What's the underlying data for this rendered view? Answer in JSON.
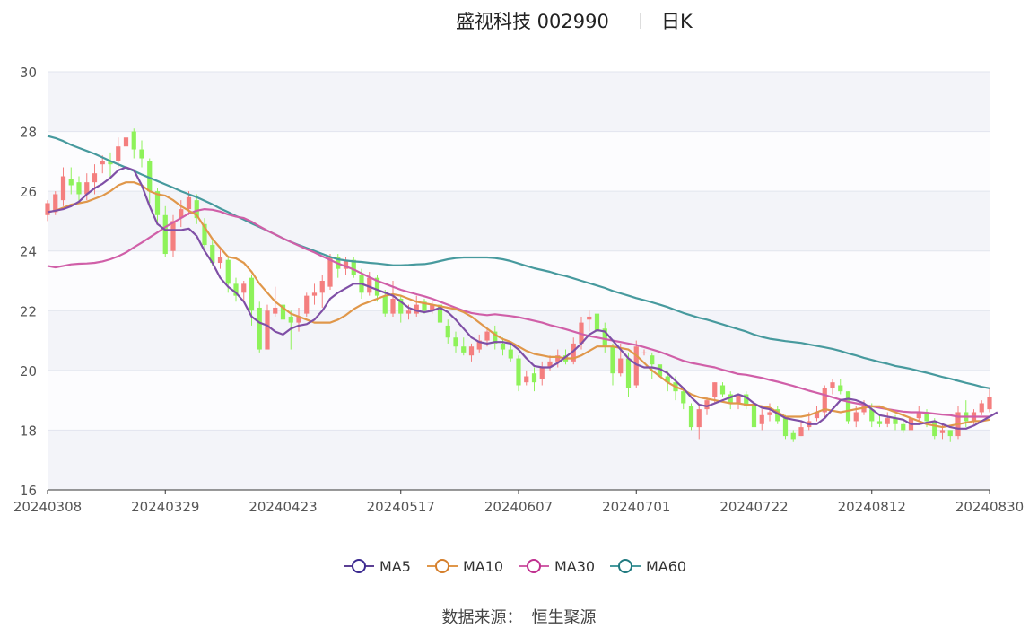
{
  "header": {
    "title": "盛视科技 002990",
    "period": "日K"
  },
  "source": {
    "label": "数据来源：",
    "value": "恒生聚源"
  },
  "colors": {
    "up": "#f47f7f",
    "down": "#8ef25a",
    "MA5": "#7f4fa6",
    "MA10": "#e0974a",
    "MA30": "#d05fa8",
    "MA60": "#479a9e",
    "band": "#f3f4f9",
    "grid": "#e2e5ee"
  },
  "chart_data": {
    "type": "candlestick",
    "title": "盛视科技 002990 日K",
    "ylim": [
      16,
      30
    ],
    "y_ticks": [
      "16",
      "18",
      "20",
      "22",
      "24",
      "26",
      "28",
      "30"
    ],
    "x_ticks": [
      "20240308",
      "20240329",
      "20240423",
      "20240517",
      "20240607",
      "20240701",
      "20240722",
      "20240812",
      "20240830"
    ],
    "legend": [
      "MA5",
      "MA10",
      "MA30",
      "MA60"
    ],
    "legend_position": "bottom",
    "n_days": 121,
    "candles": [
      [
        25.2,
        25.6,
        25.0,
        25.7
      ],
      [
        25.3,
        25.9,
        25.2,
        26.0
      ],
      [
        25.7,
        26.5,
        25.5,
        26.8
      ],
      [
        26.4,
        26.2,
        25.9,
        26.8
      ],
      [
        26.3,
        25.9,
        25.6,
        26.5
      ],
      [
        25.9,
        26.3,
        25.7,
        26.6
      ],
      [
        26.3,
        26.6,
        25.9,
        26.9
      ],
      [
        26.9,
        27.0,
        26.6,
        27.2
      ],
      [
        27.0,
        26.9,
        26.4,
        27.3
      ],
      [
        27.0,
        27.5,
        26.8,
        27.8
      ],
      [
        27.5,
        27.8,
        27.1,
        28.0
      ],
      [
        28.0,
        27.4,
        27.1,
        28.1
      ],
      [
        27.4,
        27.1,
        26.8,
        27.7
      ],
      [
        27.0,
        26.0,
        25.6,
        27.1
      ],
      [
        26.0,
        25.2,
        24.9,
        26.1
      ],
      [
        25.2,
        23.9,
        23.8,
        25.5
      ],
      [
        24.0,
        25.0,
        23.8,
        25.2
      ],
      [
        25.1,
        25.4,
        24.8,
        25.7
      ],
      [
        25.4,
        25.8,
        25.2,
        26.0
      ],
      [
        25.7,
        25.1,
        24.9,
        25.9
      ],
      [
        24.9,
        24.2,
        24.1,
        25.1
      ],
      [
        24.2,
        23.6,
        23.5,
        24.4
      ],
      [
        23.6,
        23.8,
        23.4,
        24.1
      ],
      [
        23.7,
        22.9,
        22.6,
        23.8
      ],
      [
        22.9,
        22.5,
        22.3,
        23.1
      ],
      [
        22.6,
        22.9,
        22.3,
        23.0
      ],
      [
        23.1,
        22.0,
        21.5,
        23.2
      ],
      [
        22.1,
        20.7,
        20.6,
        22.3
      ],
      [
        20.7,
        22.0,
        20.7,
        22.2
      ],
      [
        21.9,
        22.1,
        21.8,
        22.8
      ],
      [
        22.2,
        21.7,
        21.2,
        22.4
      ],
      [
        21.8,
        21.6,
        20.7,
        22.0
      ],
      [
        21.6,
        21.8,
        21.3,
        22.1
      ],
      [
        21.9,
        22.5,
        21.8,
        22.6
      ],
      [
        22.5,
        22.6,
        22.2,
        22.9
      ],
      [
        22.6,
        23.0,
        22.1,
        23.2
      ],
      [
        22.8,
        23.8,
        22.7,
        23.9
      ],
      [
        23.8,
        23.4,
        23.1,
        23.9
      ],
      [
        23.4,
        23.7,
        23.2,
        23.8
      ],
      [
        23.7,
        23.2,
        23.1,
        23.8
      ],
      [
        23.2,
        22.6,
        22.4,
        23.4
      ],
      [
        22.6,
        23.1,
        22.5,
        23.3
      ],
      [
        23.1,
        22.5,
        22.3,
        23.2
      ],
      [
        22.5,
        21.9,
        21.8,
        22.7
      ],
      [
        21.9,
        22.4,
        21.8,
        23.0
      ],
      [
        22.4,
        21.9,
        21.6,
        22.5
      ],
      [
        21.9,
        22.0,
        21.7,
        22.2
      ],
      [
        21.9,
        22.2,
        21.8,
        22.5
      ],
      [
        22.3,
        22.0,
        21.9,
        22.4
      ],
      [
        22.0,
        22.2,
        21.9,
        22.3
      ],
      [
        22.2,
        21.6,
        21.4,
        22.3
      ],
      [
        21.5,
        21.1,
        20.9,
        21.7
      ],
      [
        21.1,
        20.8,
        20.6,
        21.3
      ],
      [
        20.8,
        20.6,
        20.5,
        21.1
      ],
      [
        20.5,
        20.8,
        20.3,
        20.9
      ],
      [
        20.7,
        21.0,
        20.6,
        21.2
      ],
      [
        21.0,
        21.3,
        20.8,
        21.4
      ],
      [
        21.3,
        20.9,
        20.7,
        21.5
      ],
      [
        20.9,
        20.7,
        20.5,
        21.1
      ],
      [
        20.7,
        20.4,
        20.3,
        20.9
      ],
      [
        20.4,
        19.5,
        19.3,
        20.5
      ],
      [
        19.6,
        19.8,
        19.5,
        20.0
      ],
      [
        19.9,
        19.6,
        19.3,
        20.1
      ],
      [
        19.7,
        20.1,
        19.5,
        20.3
      ],
      [
        20.1,
        20.3,
        20.0,
        20.5
      ],
      [
        20.3,
        20.5,
        20.1,
        20.7
      ],
      [
        20.5,
        20.3,
        20.2,
        20.7
      ],
      [
        20.3,
        20.9,
        20.2,
        21.1
      ],
      [
        20.9,
        21.6,
        20.7,
        21.8
      ],
      [
        21.7,
        21.8,
        21.3,
        22.0
      ],
      [
        21.9,
        21.3,
        21.0,
        22.8
      ],
      [
        21.4,
        20.8,
        20.6,
        21.6
      ],
      [
        20.8,
        19.9,
        19.5,
        20.9
      ],
      [
        19.9,
        20.4,
        19.8,
        20.9
      ],
      [
        20.4,
        19.4,
        19.1,
        20.6
      ],
      [
        19.5,
        20.8,
        19.4,
        21.0
      ],
      [
        20.6,
        20.6,
        20.5,
        20.7
      ],
      [
        20.5,
        20.2,
        19.7,
        20.6
      ],
      [
        20.2,
        19.8,
        19.9,
        20.1
      ],
      [
        19.8,
        19.6,
        19.3,
        20.0
      ],
      [
        19.6,
        19.3,
        19.0,
        19.8
      ],
      [
        19.3,
        18.9,
        18.7,
        19.4
      ],
      [
        18.8,
        18.1,
        18.0,
        18.9
      ],
      [
        18.1,
        18.7,
        17.7,
        18.8
      ],
      [
        18.7,
        19.0,
        18.5,
        19.1
      ],
      [
        19.1,
        19.6,
        18.9,
        19.6
      ],
      [
        19.5,
        19.2,
        19.1,
        19.6
      ],
      [
        19.2,
        18.9,
        18.7,
        19.3
      ],
      [
        18.9,
        19.2,
        18.7,
        19.2
      ],
      [
        19.2,
        18.8,
        18.7,
        19.3
      ],
      [
        18.8,
        18.1,
        18.0,
        19.0
      ],
      [
        18.2,
        18.5,
        18.0,
        18.7
      ],
      [
        18.5,
        18.6,
        18.3,
        18.9
      ],
      [
        18.7,
        18.3,
        18.2,
        18.8
      ],
      [
        18.4,
        17.8,
        17.7,
        18.5
      ],
      [
        17.9,
        17.7,
        17.6,
        18.0
      ],
      [
        17.8,
        18.1,
        17.8,
        18.3
      ],
      [
        18.1,
        18.3,
        18.0,
        18.6
      ],
      [
        18.4,
        18.6,
        18.3,
        18.8
      ],
      [
        18.6,
        19.4,
        18.4,
        19.5
      ],
      [
        19.4,
        19.6,
        19.2,
        19.7
      ],
      [
        19.5,
        19.3,
        19.2,
        19.7
      ],
      [
        19.3,
        18.3,
        18.2,
        19.3
      ],
      [
        18.3,
        18.6,
        18.1,
        18.8
      ],
      [
        18.6,
        18.8,
        18.5,
        19.0
      ],
      [
        18.7,
        18.3,
        18.1,
        18.9
      ],
      [
        18.3,
        18.2,
        18.1,
        18.5
      ],
      [
        18.2,
        18.4,
        18.1,
        18.6
      ],
      [
        18.4,
        18.2,
        18.0,
        18.5
      ],
      [
        18.2,
        18.0,
        17.9,
        18.3
      ],
      [
        18.0,
        18.4,
        17.9,
        18.6
      ],
      [
        18.4,
        18.6,
        18.3,
        18.8
      ],
      [
        18.6,
        18.3,
        18.1,
        18.7
      ],
      [
        18.3,
        17.8,
        17.7,
        18.4
      ],
      [
        17.9,
        18.0,
        17.7,
        18.2
      ],
      [
        18.0,
        17.8,
        17.6,
        18.0
      ],
      [
        17.8,
        18.6,
        17.7,
        18.8
      ],
      [
        18.6,
        18.3,
        18.1,
        19.0
      ],
      [
        18.3,
        18.6,
        18.2,
        18.7
      ],
      [
        18.6,
        18.9,
        18.5,
        19.0
      ],
      [
        18.7,
        19.1,
        18.6,
        19.4
      ]
    ],
    "series": [
      {
        "name": "MA5",
        "values": [
          25.3,
          25.35,
          25.4,
          25.5,
          25.65,
          25.9,
          26.1,
          26.25,
          26.45,
          26.7,
          26.8,
          26.7,
          26.2,
          25.5,
          24.9,
          24.7,
          24.7,
          24.7,
          24.75,
          24.5,
          24.0,
          23.6,
          23.1,
          22.8,
          22.6,
          22.3,
          21.8,
          21.6,
          21.5,
          21.3,
          21.2,
          21.4,
          21.5,
          21.55,
          21.7,
          22.0,
          22.4,
          22.6,
          22.75,
          22.9,
          22.9,
          22.8,
          22.7,
          22.6,
          22.5,
          22.3,
          22.1,
          22.0,
          21.95,
          22.0,
          22.1,
          21.95,
          21.7,
          21.4,
          21.1,
          20.95,
          20.9,
          20.95,
          20.95,
          20.9,
          20.7,
          20.4,
          20.15,
          20.1,
          20.1,
          20.25,
          20.45,
          20.65,
          20.9,
          21.2,
          21.35,
          21.3,
          21.0,
          20.7,
          20.4,
          20.2,
          20.1,
          20.1,
          20.05,
          19.9,
          19.65,
          19.4,
          19.1,
          18.85,
          18.8,
          18.9,
          19.0,
          19.1,
          19.2,
          19.1,
          18.9,
          18.75,
          18.7,
          18.55,
          18.4,
          18.35,
          18.3,
          18.2,
          18.2,
          18.4,
          18.7,
          19.0,
          19.05,
          19.0,
          18.9,
          18.7,
          18.5,
          18.45,
          18.4,
          18.35,
          18.2,
          18.2,
          18.25,
          18.3,
          18.2,
          18.1,
          18.05,
          18.05,
          18.15,
          18.3,
          18.45,
          18.6
        ]
      },
      {
        "name": "MA10",
        "values": [
          25.3,
          25.35,
          25.45,
          25.55,
          25.6,
          25.65,
          25.75,
          25.85,
          26.0,
          26.2,
          26.3,
          26.3,
          26.2,
          26.0,
          25.9,
          25.85,
          25.7,
          25.5,
          25.35,
          25.2,
          24.8,
          24.4,
          24.1,
          23.8,
          23.75,
          23.6,
          23.3,
          22.9,
          22.6,
          22.3,
          22.1,
          21.9,
          21.8,
          21.7,
          21.6,
          21.6,
          21.6,
          21.7,
          21.85,
          22.05,
          22.2,
          22.3,
          22.4,
          22.5,
          22.55,
          22.5,
          22.4,
          22.3,
          22.25,
          22.2,
          22.15,
          22.1,
          22.05,
          21.95,
          21.8,
          21.6,
          21.4,
          21.2,
          21.05,
          20.95,
          20.8,
          20.65,
          20.55,
          20.5,
          20.45,
          20.45,
          20.4,
          20.4,
          20.5,
          20.65,
          20.8,
          20.8,
          20.8,
          20.75,
          20.7,
          20.5,
          20.25,
          20.0,
          19.8,
          19.6,
          19.45,
          19.35,
          19.2,
          19.1,
          19.05,
          19.0,
          18.95,
          18.9,
          18.9,
          18.85,
          18.85,
          18.8,
          18.75,
          18.6,
          18.45,
          18.45,
          18.45,
          18.5,
          18.6,
          18.7,
          18.65,
          18.6,
          18.65,
          18.7,
          18.75,
          18.8,
          18.8,
          18.7,
          18.6,
          18.5,
          18.4,
          18.3,
          18.2,
          18.15,
          18.1,
          18.15,
          18.2,
          18.25,
          18.3,
          18.3,
          18.35
        ]
      },
      {
        "name": "MA30",
        "values": [
          23.5,
          23.45,
          23.5,
          23.55,
          23.57,
          23.58,
          23.6,
          23.65,
          23.72,
          23.82,
          23.95,
          24.12,
          24.28,
          24.45,
          24.62,
          24.8,
          24.95,
          25.1,
          25.25,
          25.35,
          25.4,
          25.38,
          25.32,
          25.22,
          25.15,
          25.1,
          24.98,
          24.82,
          24.68,
          24.55,
          24.42,
          24.3,
          24.18,
          24.06,
          23.95,
          23.82,
          23.7,
          23.58,
          23.48,
          23.38,
          23.25,
          23.12,
          23.0,
          22.9,
          22.8,
          22.7,
          22.62,
          22.55,
          22.48,
          22.4,
          22.3,
          22.2,
          22.1,
          22.0,
          21.92,
          21.88,
          21.85,
          21.88,
          21.85,
          21.82,
          21.78,
          21.72,
          21.66,
          21.6,
          21.52,
          21.45,
          21.38,
          21.3,
          21.22,
          21.15,
          21.1,
          21.05,
          21.0,
          20.95,
          20.9,
          20.85,
          20.78,
          20.7,
          20.62,
          20.52,
          20.42,
          20.32,
          20.25,
          20.2,
          20.15,
          20.1,
          20.02,
          19.95,
          19.88,
          19.85,
          19.8,
          19.75,
          19.68,
          19.62,
          19.55,
          19.48,
          19.4,
          19.32,
          19.25,
          19.18,
          19.1,
          19.02,
          18.95,
          18.9,
          18.85,
          18.8,
          18.75,
          18.7,
          18.66,
          18.62,
          18.6,
          18.6,
          18.58,
          18.55,
          18.52,
          18.5,
          18.45,
          18.45,
          18.45,
          18.45,
          18.45
        ]
      },
      {
        "name": "MA60",
        "values": [
          27.85,
          27.78,
          27.68,
          27.55,
          27.45,
          27.35,
          27.25,
          27.13,
          27.01,
          26.9,
          26.79,
          26.68,
          26.56,
          26.45,
          26.34,
          26.23,
          26.12,
          26.0,
          25.9,
          25.8,
          25.68,
          25.56,
          25.42,
          25.3,
          25.17,
          25.05,
          24.92,
          24.8,
          24.68,
          24.55,
          24.42,
          24.3,
          24.2,
          24.1,
          24.0,
          23.9,
          23.8,
          23.72,
          23.68,
          23.65,
          23.63,
          23.6,
          23.58,
          23.55,
          23.52,
          23.52,
          23.53,
          23.55,
          23.56,
          23.6,
          23.66,
          23.72,
          23.76,
          23.78,
          23.78,
          23.78,
          23.78,
          23.76,
          23.72,
          23.66,
          23.58,
          23.5,
          23.42,
          23.36,
          23.3,
          23.22,
          23.16,
          23.08,
          23.0,
          22.92,
          22.84,
          22.76,
          22.66,
          22.58,
          22.5,
          22.42,
          22.35,
          22.28,
          22.2,
          22.12,
          22.02,
          21.92,
          21.84,
          21.76,
          21.7,
          21.62,
          21.54,
          21.46,
          21.38,
          21.3,
          21.2,
          21.12,
          21.06,
          21.02,
          20.98,
          20.95,
          20.92,
          20.87,
          20.82,
          20.77,
          20.72,
          20.65,
          20.57,
          20.5,
          20.42,
          20.35,
          20.28,
          20.22,
          20.15,
          20.1,
          20.05,
          19.98,
          19.92,
          19.85,
          19.78,
          19.72,
          19.65,
          19.58,
          19.52,
          19.45,
          19.4
        ]
      }
    ]
  }
}
